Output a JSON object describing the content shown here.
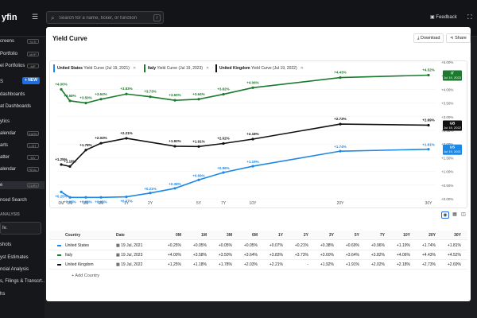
{
  "app": {
    "logo_text": "yfin"
  },
  "header": {
    "search_placeholder": "Search for a name, ticker, or function",
    "search_shortcut": "/",
    "feedback_label": "Feedback",
    "expand_icon": "expand-icon"
  },
  "sidebar": {
    "new_label": "+ NEW",
    "search_label": "Iv.",
    "items": [
      {
        "label": "creens",
        "badge": "SCR"
      },
      {
        "label": "Portfolio",
        "badge": "MYP"
      },
      {
        "label": "el Portfolios",
        "badge": "MP"
      },
      {
        "label": "S"
      },
      {
        "label": "dashboards"
      },
      {
        "label": "at Dashboards"
      },
      {
        "label": "ytics"
      },
      {
        "label": "alendar",
        "badge": "EARN"
      },
      {
        "label": "arts",
        "badge": "LIST"
      },
      {
        "label": "atter",
        "badge": "MV"
      },
      {
        "label": "alendar",
        "badge": "REAL"
      },
      {
        "label": "e",
        "badge": "CURV"
      },
      {
        "label": "nced Search"
      },
      {
        "label": "ANALYSIS"
      },
      {
        "label": "rapeutics, Inc."
      },
      {
        "label": "shots"
      },
      {
        "label": "yst Estimates"
      },
      {
        "label": "ncial Analysis"
      },
      {
        "label": "s, Filings & Transcrt..."
      },
      {
        "label": "hs"
      }
    ]
  },
  "page": {
    "title": "Yield Curve",
    "download_label": "Download",
    "share_label": "Share"
  },
  "legend": [
    {
      "country": "United States",
      "detail": "Yield Curve (Jul 19, 2021)",
      "color": "#1e88e5"
    },
    {
      "country": "Italy",
      "detail": "Yield Curve (Jul 19, 2023)",
      "color": "#1b7a2e"
    },
    {
      "country": "United Kingdom",
      "detail": "Yield Curve (Jul 19, 2022)",
      "color": "#111111"
    }
  ],
  "chart_data": {
    "type": "line",
    "x": [
      "0M",
      "1M",
      "3M",
      "6M",
      "1Y",
      "2Y",
      "3Y",
      "5Y",
      "7Y",
      "10Y",
      "20Y",
      "30Y"
    ],
    "x_tick_labels": [
      "0M",
      "1M",
      "3M",
      "6M",
      "1Y",
      "2Y",
      "5Y",
      "7Y",
      "10Y",
      "20Y",
      "30Y"
    ],
    "y_tick_labels": [
      "+5.00%",
      "+4.50%",
      "+4.00%",
      "+3.50%",
      "+3.00%",
      "+2.50%",
      "+2.00%",
      "+1.50%",
      "+1.00%",
      "+0.50%",
      "+0.00%"
    ],
    "ylim": [
      0,
      5.1
    ],
    "series": [
      {
        "name": "United States",
        "color": "#1e88e5",
        "values": [
          0.25,
          0.05,
          0.05,
          0.05,
          0.07,
          0.21,
          0.38,
          0.69,
          0.96,
          1.19,
          1.74,
          1.81
        ],
        "labels": [
          "+0.25%",
          "+0.05%",
          "+0.05%",
          "+0.05%",
          "+0.07%",
          "+0.21%",
          "+0.38%",
          "+0.69%",
          "+0.96%",
          "+1.19%",
          "+1.74%",
          "+1.81%"
        ],
        "end_tag": [
          "US",
          "Jul 19, 2021"
        ]
      },
      {
        "name": "Italy",
        "color": "#1b7a2e",
        "values": [
          4.0,
          3.58,
          3.5,
          3.64,
          3.83,
          3.73,
          3.6,
          3.64,
          3.82,
          4.06,
          4.43,
          4.52
        ],
        "labels": [
          "+4.00%",
          "+3.58%",
          "+3.50%",
          "+3.64%",
          "+3.83%",
          "+3.73%",
          "+3.60%",
          "+3.64%",
          "+3.82%",
          "+4.06%",
          "+4.43%",
          "+4.52%"
        ],
        "end_tag": [
          "IT",
          "Jul 19, 2023"
        ]
      },
      {
        "name": "United Kingdom",
        "color": "#111111",
        "values": [
          1.25,
          1.18,
          1.78,
          2.03,
          2.21,
          null,
          1.92,
          1.91,
          2.02,
          2.18,
          2.73,
          2.69
        ],
        "labels": [
          "+1.25%",
          "+1.18%",
          "+1.78%",
          "+2.03%",
          "+2.21%",
          "",
          "+1.92%",
          "+1.91%",
          "+2.02%",
          "+2.18%",
          "+2.73%",
          "+2.69%"
        ],
        "end_tag": [
          "GB",
          "Jul 19, 2022"
        ]
      }
    ]
  },
  "table": {
    "headers": [
      "Country",
      "Date",
      "0M",
      "1M",
      "3M",
      "6M",
      "1Y",
      "2Y",
      "3Y",
      "5Y",
      "7Y",
      "10Y",
      "20Y",
      "30Y"
    ],
    "rows": [
      {
        "country": "United States",
        "date": "19 Jul, 2021",
        "color": "#1e88e5",
        "values": [
          "+0.25%",
          "+0.05%",
          "+0.05%",
          "+0.05%",
          "+0.07%",
          "+0.21%",
          "+0.38%",
          "+0.69%",
          "+0.96%",
          "+1.19%",
          "+1.74%",
          "+1.81%"
        ]
      },
      {
        "country": "Italy",
        "date": "19 Jul, 2023",
        "color": "#1b7a2e",
        "values": [
          "+4.00%",
          "+3.58%",
          "+3.50%",
          "+3.64%",
          "+3.83%",
          "+3.73%",
          "+3.60%",
          "+3.64%",
          "+3.82%",
          "+4.06%",
          "+4.43%",
          "+4.52%"
        ]
      },
      {
        "country": "United Kingdom",
        "date": "19 Jul, 2022",
        "color": "#111111",
        "values": [
          "+1.25%",
          "+1.18%",
          "+1.78%",
          "+2.03%",
          "+2.21%",
          "-",
          "+1.92%",
          "+1.91%",
          "+2.02%",
          "+2.18%",
          "+2.73%",
          "+2.69%"
        ]
      }
    ],
    "add_label": "+ Add Country"
  }
}
